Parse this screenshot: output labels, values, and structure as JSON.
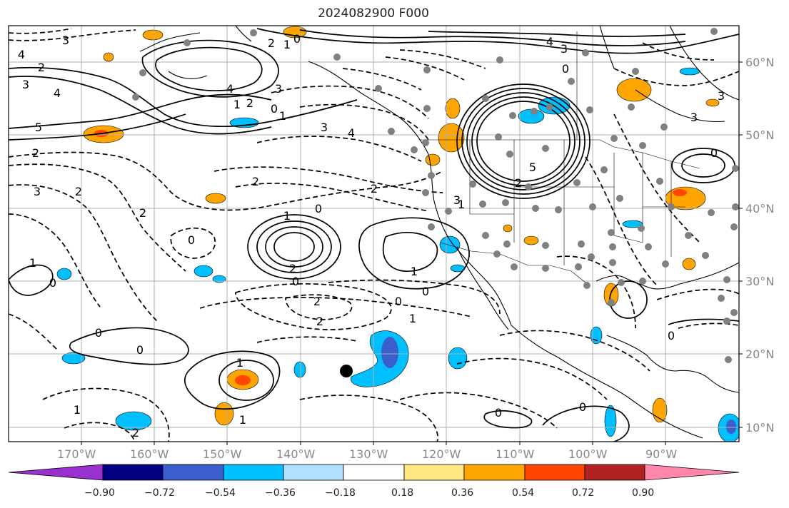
{
  "title": "2024082900 F000",
  "lat_labels": [
    "60°N",
    "50°N",
    "40°N",
    "30°N",
    "20°N",
    "10°N"
  ],
  "lon_labels": [
    "170°W",
    "160°W",
    "150°W",
    "140°W",
    "130°W",
    "120°W",
    "110°W",
    "100°W",
    "90°W"
  ],
  "contour_labels": [
    {
      "text": "3"
    },
    {
      "text": "4"
    },
    {
      "text": "2"
    },
    {
      "text": "4"
    },
    {
      "text": "3"
    },
    {
      "text": "5"
    },
    {
      "text": "2"
    },
    {
      "text": "3"
    },
    {
      "text": "2"
    },
    {
      "text": "1"
    },
    {
      "text": "0"
    },
    {
      "text": "4"
    },
    {
      "text": "3"
    },
    {
      "text": "2"
    },
    {
      "text": "1"
    },
    {
      "text": "0"
    },
    {
      "text": "1"
    },
    {
      "text": "2"
    },
    {
      "text": "3"
    },
    {
      "text": "4"
    },
    {
      "text": "4"
    },
    {
      "text": "3"
    },
    {
      "text": "0"
    },
    {
      "text": "5"
    },
    {
      "text": "2"
    },
    {
      "text": "3"
    },
    {
      "text": "2"
    },
    {
      "text": "2"
    },
    {
      "text": "0"
    },
    {
      "text": "1"
    },
    {
      "text": "0"
    },
    {
      "text": "2"
    },
    {
      "text": "1"
    },
    {
      "text": "2"
    },
    {
      "text": "0"
    },
    {
      "text": "0"
    },
    {
      "text": "2"
    },
    {
      "text": "2"
    },
    {
      "text": "0"
    },
    {
      "text": "1"
    },
    {
      "text": "1"
    },
    {
      "text": "0"
    },
    {
      "text": "0"
    },
    {
      "text": "0"
    },
    {
      "text": "1"
    },
    {
      "text": "1"
    },
    {
      "text": "1"
    },
    {
      "text": "0"
    },
    {
      "text": "0"
    },
    {
      "text": "0"
    },
    {
      "text": "3"
    },
    {
      "text": "1"
    },
    {
      "text": "0"
    },
    {
      "text": "2"
    },
    {
      "text": "3"
    }
  ],
  "colorbar": {
    "ticks": [
      "−0.90",
      "−0.72",
      "−0.54",
      "−0.36",
      "−0.18",
      "0.18",
      "0.36",
      "0.54",
      "0.72",
      "0.90"
    ],
    "colors": [
      "#9b30d0",
      "#000080",
      "#3a5fcd",
      "#00bfff",
      "#b0e0ff",
      "#ffffff",
      "#ffe680",
      "#ffa500",
      "#ff4500",
      "#b22222",
      "#ff88aa"
    ]
  },
  "marker_color": "#000000",
  "station_color": "#808080"
}
